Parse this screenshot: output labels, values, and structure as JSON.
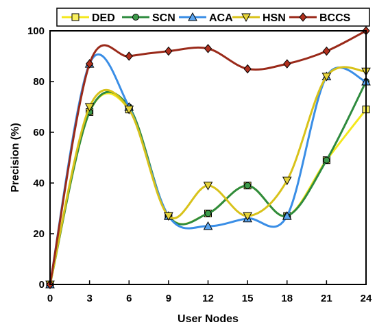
{
  "chart_data": {
    "type": "line",
    "xlabel": "User Nodes",
    "ylabel": "Precision (%)",
    "xlim": [
      0,
      24
    ],
    "ylim": [
      0,
      100
    ],
    "x_ticks": [
      0,
      3,
      6,
      9,
      12,
      15,
      18,
      21,
      24
    ],
    "y_ticks": [
      0,
      20,
      40,
      60,
      80,
      100
    ],
    "grid": false,
    "legend_position": "top",
    "x": [
      0,
      3,
      6,
      9,
      12,
      15,
      18,
      21,
      24
    ],
    "series": [
      {
        "name": "DED",
        "marker": "square",
        "line_color": "#f4e81c",
        "marker_fill": "#f9f060",
        "values": [
          0,
          68,
          69,
          27,
          28,
          39,
          27,
          49,
          69
        ]
      },
      {
        "name": "SCN",
        "marker": "circle",
        "line_color": "#2e8b3e",
        "marker_fill": "#3d9a4a",
        "values": [
          0,
          68,
          70,
          27,
          28,
          39,
          27,
          49,
          80
        ]
      },
      {
        "name": "ACA",
        "marker": "triangle-up",
        "line_color": "#3a8ee6",
        "marker_fill": "#5aa5f0",
        "values": [
          0,
          87,
          70,
          27,
          23,
          26,
          27,
          82,
          80
        ]
      },
      {
        "name": "HSN",
        "marker": "triangle-down",
        "line_color": "#d8c21a",
        "marker_fill": "#e6d43a",
        "values": [
          0,
          70,
          69,
          27,
          39,
          27,
          41,
          82,
          84
        ]
      },
      {
        "name": "BCCS",
        "marker": "diamond",
        "line_color": "#9a2a1a",
        "marker_fill": "#b0301e",
        "values": [
          0,
          87,
          90,
          92,
          93,
          85,
          87,
          92,
          100
        ]
      }
    ]
  }
}
